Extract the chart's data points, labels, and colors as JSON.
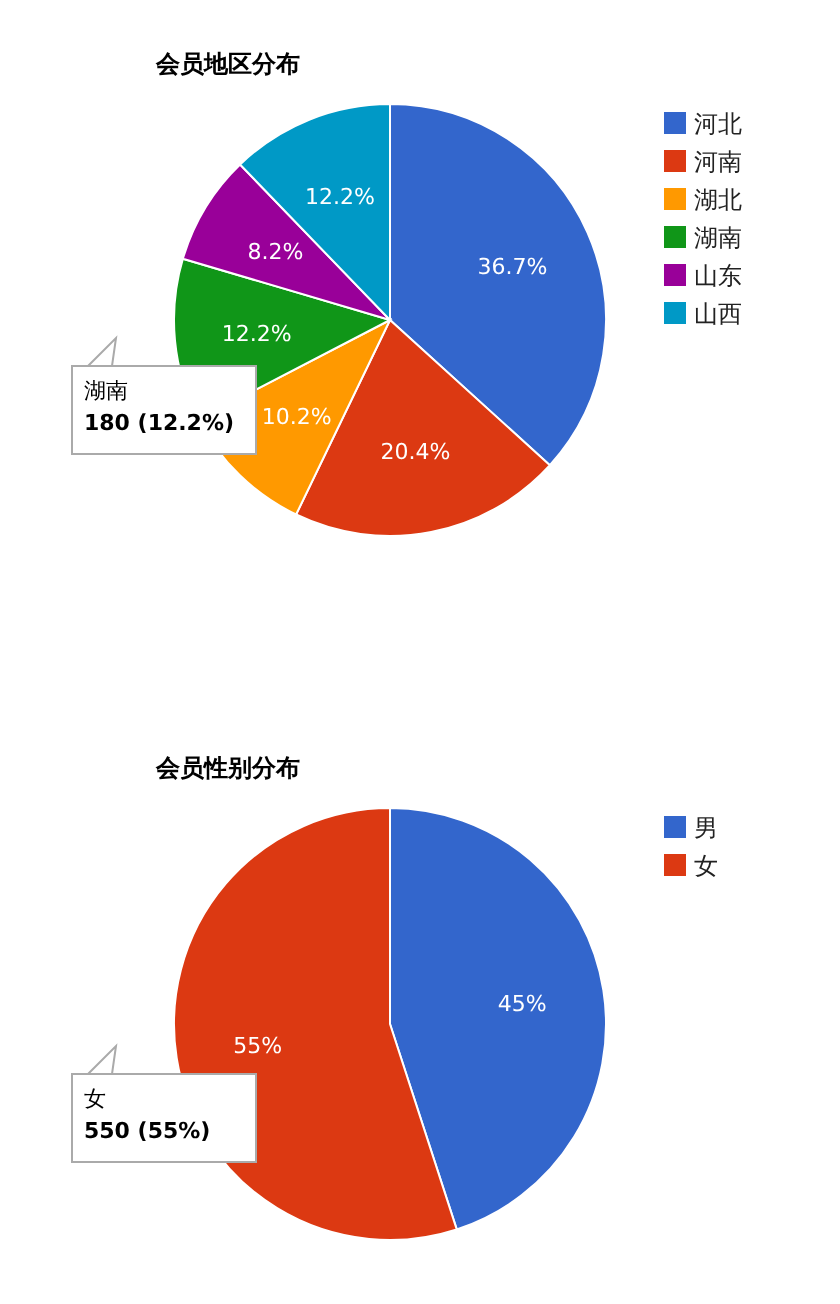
{
  "chart_data": [
    {
      "type": "pie",
      "title": "会员地区分布",
      "categories": [
        "河北",
        "河南",
        "湖北",
        "湖南",
        "山东",
        "山西"
      ],
      "values": [
        36.7,
        20.4,
        10.2,
        12.2,
        8.2,
        12.2
      ],
      "value_labels": [
        "36.7%",
        "20.4%",
        "10.2%",
        "12.2%",
        "8.2%",
        "12.2%"
      ],
      "colors": [
        "#3366cc",
        "#dc3912",
        "#ff9900",
        "#109618",
        "#990099",
        "#0099c6"
      ],
      "legend": "right",
      "annotations": [
        "湖南\n180 (12.2%)"
      ]
    },
    {
      "type": "pie",
      "title": "会员性别分布",
      "categories": [
        "男",
        "女"
      ],
      "values": [
        45,
        55
      ],
      "value_labels": [
        "45%",
        "55%"
      ],
      "colors": [
        "#3366cc",
        "#dc3912"
      ],
      "legend": "right",
      "annotations": [
        "女\n550 (55%)"
      ]
    }
  ]
}
